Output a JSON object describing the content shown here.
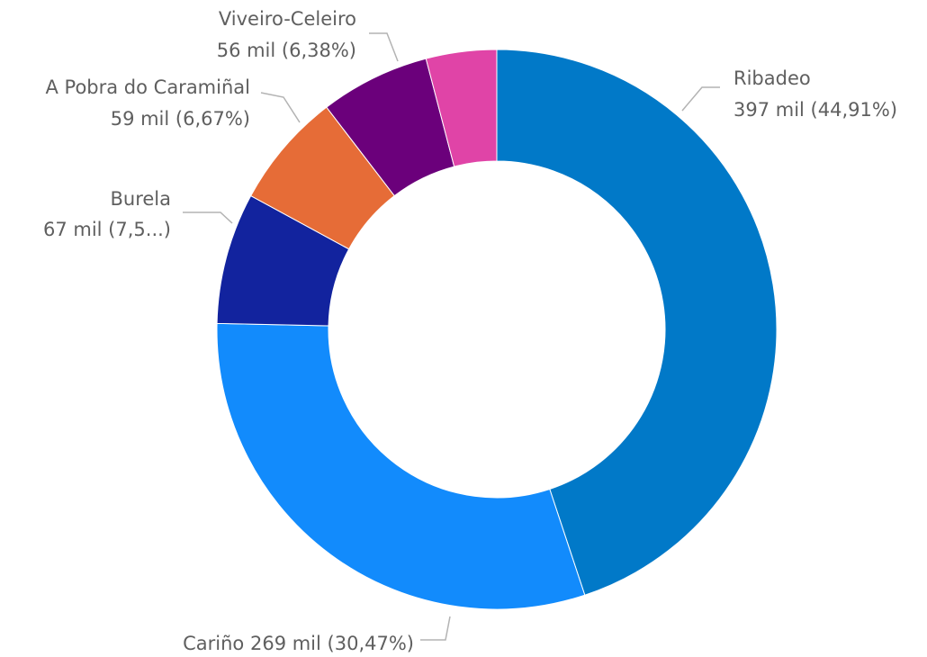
{
  "chart_data": {
    "type": "pie",
    "variant": "donut",
    "legend": "none",
    "categories": [
      "Ribadeo",
      "Cariño",
      "Burela",
      "A Pobra do Caramiñal",
      "Viveiro-Celeiro",
      ""
    ],
    "values": [
      397,
      269,
      67,
      59,
      56,
      36
    ],
    "colors": [
      "#0179c8",
      "#128bfc",
      "#12239e",
      "#e66c37",
      "#6b007b",
      "#e044a7"
    ],
    "labels": [
      {
        "name": "Ribadeo",
        "value_text": "397 mil (44,91%)"
      },
      {
        "name": "Cariño",
        "value_text": "269 mil (30,47%)"
      },
      {
        "name": "Burela",
        "value_text": "67 mil (7,5...)"
      },
      {
        "name": "A Pobra do Caramiñal",
        "value_text": "59 mil (6,67%)"
      },
      {
        "name": "Viveiro-Celeiro",
        "value_text": "56 mil (6,38%)"
      }
    ]
  }
}
